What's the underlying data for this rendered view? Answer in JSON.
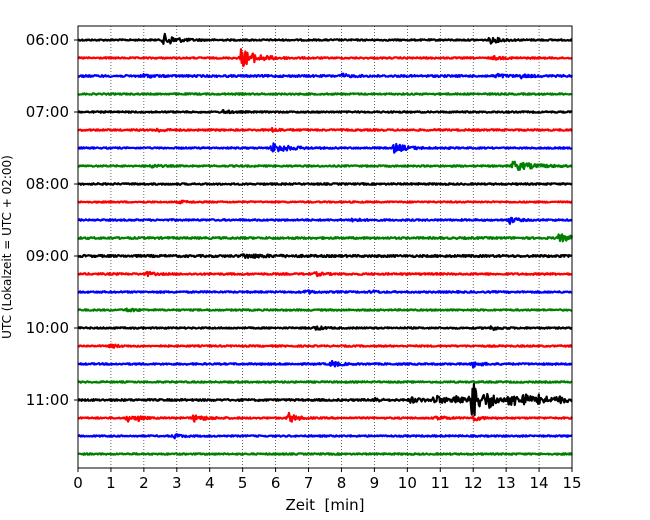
{
  "chart_data": {
    "type": "line",
    "chart_kind": "helicorder (seismogram drum plot)",
    "xlabel": "Zeit  [min]",
    "ylabel": "UTC (Lokalzeit = UTC + 02:00)",
    "xlim": [
      0,
      15
    ],
    "x_ticks": [
      "0",
      "1",
      "2",
      "3",
      "4",
      "5",
      "6",
      "7",
      "8",
      "9",
      "10",
      "11",
      "12",
      "13",
      "14",
      "15"
    ],
    "y_tick_labels": [
      "06:00",
      "07:00",
      "08:00",
      "09:00",
      "10:00",
      "11:00"
    ],
    "grid": "vertical dotted lines at each minute",
    "legend": "none",
    "colors": {
      "black": "#000000",
      "red": "#ff0000",
      "blue": "#0000ff",
      "green": "#008000"
    },
    "traces": [
      {
        "start": "06:00",
        "color": "black",
        "noise": 0.12,
        "events": [
          {
            "t": 2.6,
            "a": 1.0,
            "d": 0.35
          },
          {
            "t": 12.5,
            "a": 0.55,
            "d": 0.3
          }
        ]
      },
      {
        "start": "06:15",
        "color": "red",
        "noise": 0.12,
        "events": [
          {
            "t": 4.95,
            "a": 1.5,
            "d": 0.45
          },
          {
            "t": 12.6,
            "a": 0.25,
            "d": 0.3
          }
        ]
      },
      {
        "start": "06:30",
        "color": "blue",
        "noise": 0.16,
        "events": [
          {
            "t": 2.0,
            "a": 0.3,
            "d": 0.2
          },
          {
            "t": 8.0,
            "a": 0.3,
            "d": 0.2
          },
          {
            "t": 12.7,
            "a": 0.35,
            "d": 0.2
          },
          {
            "t": 13.4,
            "a": 0.3,
            "d": 0.2
          }
        ]
      },
      {
        "start": "06:45",
        "color": "green",
        "noise": 0.12,
        "events": []
      },
      {
        "start": "07:00",
        "color": "black",
        "noise": 0.12,
        "events": [
          {
            "t": 4.4,
            "a": 0.3,
            "d": 0.2
          }
        ]
      },
      {
        "start": "07:15",
        "color": "red",
        "noise": 0.13,
        "events": [
          {
            "t": 2.4,
            "a": 0.3,
            "d": 0.2
          },
          {
            "t": 5.9,
            "a": 0.3,
            "d": 0.2
          }
        ]
      },
      {
        "start": "07:30",
        "color": "blue",
        "noise": 0.12,
        "events": [
          {
            "t": 5.9,
            "a": 0.9,
            "d": 0.4
          },
          {
            "t": 9.6,
            "a": 0.75,
            "d": 0.35
          }
        ]
      },
      {
        "start": "07:45",
        "color": "green",
        "noise": 0.12,
        "events": [
          {
            "t": 2.2,
            "a": 0.3,
            "d": 0.2
          },
          {
            "t": 13.2,
            "a": 0.8,
            "d": 0.55
          }
        ]
      },
      {
        "start": "08:00",
        "color": "black",
        "noise": 0.13,
        "events": []
      },
      {
        "start": "08:15",
        "color": "red",
        "noise": 0.11,
        "events": [
          {
            "t": 3.1,
            "a": 0.2,
            "d": 0.2
          }
        ]
      },
      {
        "start": "08:30",
        "color": "blue",
        "noise": 0.13,
        "events": [
          {
            "t": 8.3,
            "a": 0.3,
            "d": 0.2
          },
          {
            "t": 13.1,
            "a": 0.55,
            "d": 0.2
          }
        ]
      },
      {
        "start": "08:45",
        "color": "green",
        "noise": 0.15,
        "events": [
          {
            "t": 14.6,
            "a": 0.6,
            "d": 0.4
          }
        ]
      },
      {
        "start": "09:00",
        "color": "black",
        "noise": 0.17,
        "events": [
          {
            "t": 5.0,
            "a": 0.3,
            "d": 0.6
          }
        ]
      },
      {
        "start": "09:15",
        "color": "red",
        "noise": 0.14,
        "events": [
          {
            "t": 2.1,
            "a": 0.35,
            "d": 0.15
          },
          {
            "t": 7.2,
            "a": 0.3,
            "d": 0.2
          }
        ]
      },
      {
        "start": "09:30",
        "color": "blue",
        "noise": 0.13,
        "events": [
          {
            "t": 6.9,
            "a": 0.3,
            "d": 0.2
          },
          {
            "t": 8.9,
            "a": 0.3,
            "d": 0.15
          }
        ]
      },
      {
        "start": "09:45",
        "color": "green",
        "noise": 0.12,
        "events": [
          {
            "t": 1.5,
            "a": 0.3,
            "d": 0.2
          }
        ]
      },
      {
        "start": "10:00",
        "color": "black",
        "noise": 0.12,
        "events": [
          {
            "t": 7.2,
            "a": 0.35,
            "d": 0.2
          },
          {
            "t": 12.5,
            "a": 0.35,
            "d": 0.25
          }
        ]
      },
      {
        "start": "10:15",
        "color": "red",
        "noise": 0.12,
        "events": [
          {
            "t": 1.0,
            "a": 0.3,
            "d": 0.2
          }
        ]
      },
      {
        "start": "10:30",
        "color": "blue",
        "noise": 0.13,
        "events": [
          {
            "t": 7.7,
            "a": 0.55,
            "d": 0.2
          },
          {
            "t": 12.0,
            "a": 0.5,
            "d": 0.2
          }
        ]
      },
      {
        "start": "10:45",
        "color": "green",
        "noise": 0.12,
        "events": []
      },
      {
        "start": "11:00",
        "color": "black",
        "noise": 0.15,
        "events": [
          {
            "t": 9.0,
            "a": 0.6,
            "d": 0.1
          },
          {
            "t": 10.1,
            "a": 0.45,
            "d": 0.3
          },
          {
            "t": 10.8,
            "a": 0.8,
            "d": 0.3
          },
          {
            "t": 11.4,
            "a": 0.9,
            "d": 0.3
          },
          {
            "t": 11.95,
            "a": 3.5,
            "d": 0.25
          },
          {
            "t": 12.45,
            "a": 1.1,
            "d": 0.25
          },
          {
            "t": 13.1,
            "a": 1.2,
            "d": 0.3
          },
          {
            "t": 13.5,
            "a": 1.0,
            "d": 0.25
          },
          {
            "t": 14.0,
            "a": 0.8,
            "d": 0.3
          },
          {
            "t": 14.5,
            "a": 0.55,
            "d": 0.3
          }
        ]
      },
      {
        "start": "11:15",
        "color": "red",
        "noise": 0.12,
        "events": [
          {
            "t": 1.5,
            "a": 0.6,
            "d": 0.15
          },
          {
            "t": 1.8,
            "a": 0.5,
            "d": 0.15
          },
          {
            "t": 3.5,
            "a": 0.55,
            "d": 0.35
          },
          {
            "t": 6.4,
            "a": 0.9,
            "d": 0.2
          },
          {
            "t": 10.9,
            "a": 0.4,
            "d": 0.2
          },
          {
            "t": 12.0,
            "a": 0.5,
            "d": 0.2
          }
        ]
      },
      {
        "start": "11:30",
        "color": "blue",
        "noise": 0.12,
        "events": [
          {
            "t": 2.9,
            "a": 0.35,
            "d": 0.2
          }
        ]
      },
      {
        "start": "11:45",
        "color": "green",
        "noise": 0.12,
        "events": []
      }
    ]
  }
}
